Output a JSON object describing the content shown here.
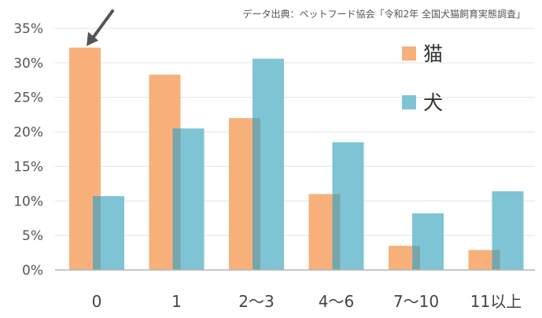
{
  "source_note": "データ出典：ペットフード協会「令和2年 全国犬猫飼育実態調査」",
  "chart_data": {
    "type": "bar",
    "title": "",
    "xlabel": "",
    "ylabel": "",
    "categories": [
      "0",
      "1",
      "2〜3",
      "4〜6",
      "7〜10",
      "11以上"
    ],
    "series": [
      {
        "name": "猫",
        "color": "#f8b07b",
        "values": [
          32.2,
          28.3,
          22.0,
          11.0,
          3.5,
          2.9
        ]
      },
      {
        "name": "犬",
        "color": "#7ec4d4",
        "values": [
          10.7,
          20.5,
          30.6,
          18.5,
          8.2,
          11.4
        ]
      }
    ],
    "ylim": [
      0,
      35
    ],
    "yticks": [
      0,
      5,
      10,
      15,
      20,
      25,
      30,
      35
    ],
    "ytick_suffix": "%",
    "grid": true,
    "legend_position": "top-right",
    "annotation": {
      "type": "arrow",
      "target_series": 0,
      "target_index": 0,
      "color": "#555555"
    }
  }
}
